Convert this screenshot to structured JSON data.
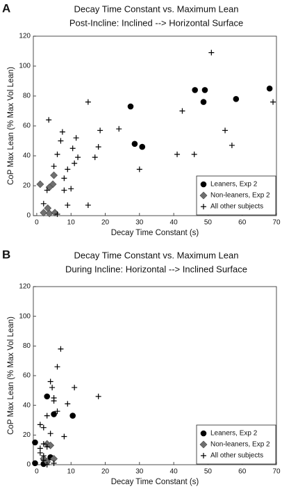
{
  "chart_data": [
    {
      "type": "scatter",
      "panel": "A",
      "title": "Decay Time Constant vs. Maximum Lean",
      "subtitle": "Post-Incline: Inclined --> Horizontal Surface",
      "x_label": "Decay Time Constant (s)",
      "y_label": "CoP Max Lean (% Max Vol Lean)",
      "xlim": [
        -1,
        70
      ],
      "ylim": [
        0,
        120
      ],
      "xticks": [
        0,
        10,
        20,
        30,
        40,
        50,
        60,
        70
      ],
      "yticks": [
        0,
        20,
        40,
        60,
        80,
        100,
        120
      ],
      "legend": "lower right",
      "series": [
        {
          "name": "Leaners, Exp 2",
          "color": "#000000",
          "marker": "circle",
          "x": [
            27.4,
            28.6,
            30.8,
            46.2,
            49.1,
            48.7,
            58.2,
            68.0
          ],
          "values": [
            73,
            48,
            46,
            84,
            84,
            76,
            78,
            85
          ]
        },
        {
          "name": "Non-leaners, Exp 2",
          "color": "#707070",
          "marker": "diamond",
          "x": [
            1.0,
            5.0,
            4.7,
            3.7,
            3.2,
            2.0,
            3.7,
            5.3
          ],
          "values": [
            21,
            27,
            21,
            19,
            5,
            2,
            1.5,
            2
          ]
        },
        {
          "name": "All other subjects",
          "color": "#000000",
          "marker": "plus",
          "x": [
            2,
            3,
            3.5,
            5,
            6,
            6,
            7,
            7.5,
            8,
            8,
            9,
            9,
            10,
            10.5,
            11,
            11.5,
            12,
            15,
            15,
            17,
            18,
            18.5,
            24,
            30,
            42.5,
            41,
            46,
            55,
            57,
            69,
            51
          ],
          "values": [
            8,
            17,
            64,
            33,
            41,
            1,
            50,
            56,
            25,
            17,
            7,
            31,
            18,
            45,
            35,
            52,
            39,
            76,
            7,
            39,
            46,
            57,
            58,
            31,
            70,
            41,
            41,
            57,
            47,
            76,
            109
          ]
        }
      ]
    },
    {
      "type": "scatter",
      "panel": "B",
      "title": "Decay Time Constant vs. Maximum Lean",
      "subtitle": "During Incline: Horizontal --> Inclined Surface",
      "x_label": "Decay Time Constant (s)",
      "y_label": "CoP Max Lean (% Max Vol Lean)",
      "xlim": [
        -1,
        70
      ],
      "ylim": [
        0,
        120
      ],
      "xticks": [
        0,
        10,
        20,
        30,
        40,
        50,
        60,
        70
      ],
      "yticks": [
        0,
        20,
        40,
        60,
        80,
        100,
        120
      ],
      "legend": "lower right",
      "series": [
        {
          "name": "Leaners, Exp 2",
          "color": "#000000",
          "marker": "circle",
          "x": [
            -0.5,
            -0.5,
            3,
            5,
            10.5,
            3,
            4,
            2
          ],
          "values": [
            15,
            1,
            46,
            34,
            33,
            2,
            5,
            0.5
          ]
        },
        {
          "name": "Non-leaners, Exp 2",
          "color": "#707070",
          "marker": "diamond",
          "x": [
            3,
            2,
            3,
            5,
            4
          ],
          "values": [
            14,
            4,
            2,
            4,
            13
          ]
        },
        {
          "name": "All other subjects",
          "color": "#000000",
          "marker": "plus",
          "x": [
            1,
            2,
            2,
            1,
            2,
            3,
            3,
            4,
            4.5,
            5,
            5,
            6,
            7,
            6,
            8,
            9,
            11,
            18,
            3,
            4,
            5,
            1,
            2
          ],
          "values": [
            27,
            25,
            14,
            8,
            3,
            12,
            0,
            56,
            52,
            45,
            43,
            36,
            78,
            66,
            19,
            41,
            52,
            46,
            33,
            21,
            1,
            11,
            6
          ]
        }
      ]
    }
  ]
}
